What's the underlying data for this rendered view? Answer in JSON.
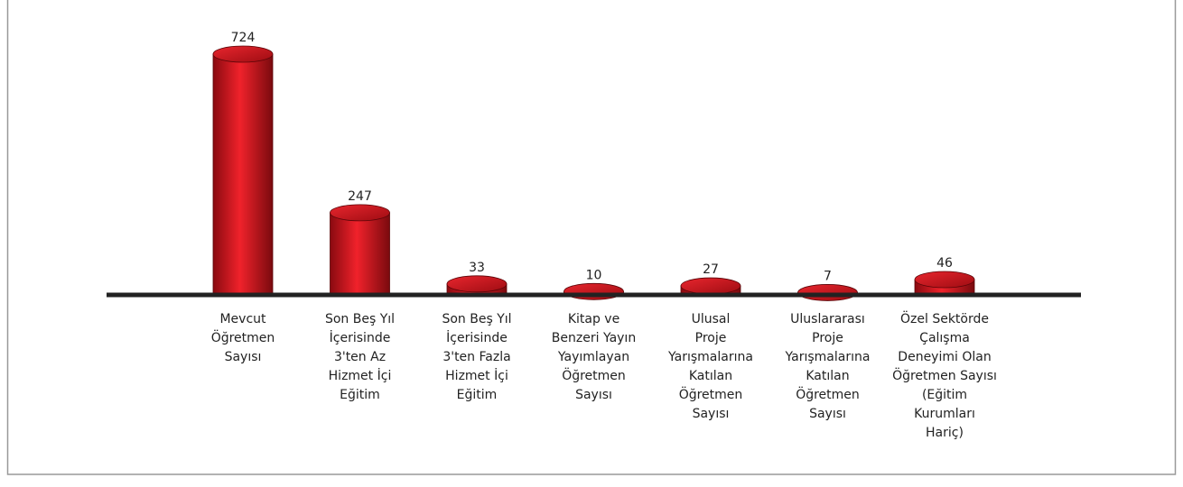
{
  "chart_data": {
    "type": "bar",
    "categories": [
      [
        "Mevcut",
        "Öğretmen",
        "Sayısı"
      ],
      [
        "Son Beş Yıl",
        "İçerisinde",
        "3'ten Az",
        "Hizmet İçi",
        "Eğitim"
      ],
      [
        "Son Beş Yıl",
        "İçerisinde",
        "3'ten Fazla",
        "Hizmet İçi",
        "Eğitim"
      ],
      [
        "Kitap ve",
        "Benzeri Yayın",
        "Yayımlayan",
        "Öğretmen",
        "Sayısı"
      ],
      [
        "Ulusal",
        "Proje",
        "Yarışmalarına",
        "Katılan",
        "Öğretmen",
        "Sayısı"
      ],
      [
        "Uluslararası",
        "Proje",
        "Yarışmalarına",
        "Katılan",
        "Öğretmen",
        "Sayısı"
      ],
      [
        "Özel Sektörde",
        "Çalışma",
        "Deneyimi Olan",
        "Öğretmen Sayısı",
        "(Eğitim",
        "Kurumları",
        "Hariç)"
      ]
    ],
    "values": [
      724,
      247,
      33,
      10,
      27,
      7,
      46
    ],
    "color": "#d0121b"
  }
}
